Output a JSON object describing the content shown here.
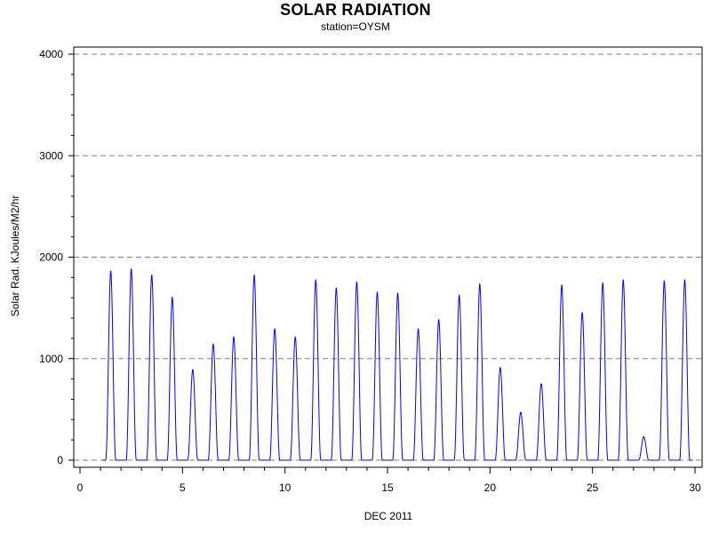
{
  "chart_data": {
    "type": "line",
    "title": "SOLAR RADIATION",
    "subtitle": "station=OYSM",
    "xlabel": "DEC 2011",
    "ylabel": "Solar Rad. KJoules/M2/hr",
    "xlim": [
      0,
      30
    ],
    "ylim": [
      0,
      4000
    ],
    "x_ticks": [
      0,
      5,
      10,
      15,
      20,
      25,
      30
    ],
    "x_tick_labels": [
      "0",
      "5",
      "10",
      "15",
      "20",
      "25",
      "30"
    ],
    "y_ticks": [
      0,
      1000,
      2000,
      3000,
      4000
    ],
    "y_tick_labels": [
      "0",
      "1000",
      "2000",
      "3000",
      "4000"
    ],
    "gridlines": "horizontal dashed",
    "colors": {
      "series": "#0000ff",
      "grid": "#808080",
      "axis": "#000000"
    },
    "series": [
      {
        "daily_peaks": [
          {
            "day": 1,
            "peak": 1860
          },
          {
            "day": 2,
            "peak": 1880
          },
          {
            "day": 3,
            "peak": 1820
          },
          {
            "day": 4,
            "peak": 1600
          },
          {
            "day": 5,
            "peak": 890
          },
          {
            "day": 6,
            "peak": 1140
          },
          {
            "day": 7,
            "peak": 1210
          },
          {
            "day": 8,
            "peak": 1820
          },
          {
            "day": 9,
            "peak": 1290
          },
          {
            "day": 10,
            "peak": 1210
          },
          {
            "day": 11,
            "peak": 1770
          },
          {
            "day": 12,
            "peak": 1690
          },
          {
            "day": 13,
            "peak": 1750
          },
          {
            "day": 14,
            "peak": 1650
          },
          {
            "day": 15,
            "peak": 1640
          },
          {
            "day": 16,
            "peak": 1290
          },
          {
            "day": 17,
            "peak": 1380
          },
          {
            "day": 18,
            "peak": 1620
          },
          {
            "day": 19,
            "peak": 1730
          },
          {
            "day": 20,
            "peak": 910
          },
          {
            "day": 21,
            "peak": 470
          },
          {
            "day": 22,
            "peak": 750
          },
          {
            "day": 23,
            "peak": 1720
          },
          {
            "day": 24,
            "peak": 1450
          },
          {
            "day": 25,
            "peak": 1740
          },
          {
            "day": 26,
            "peak": 1770
          },
          {
            "day": 27,
            "peak": 230
          },
          {
            "day": 28,
            "peak": 1760
          },
          {
            "day": 29,
            "peak": 1770
          }
        ]
      }
    ]
  }
}
